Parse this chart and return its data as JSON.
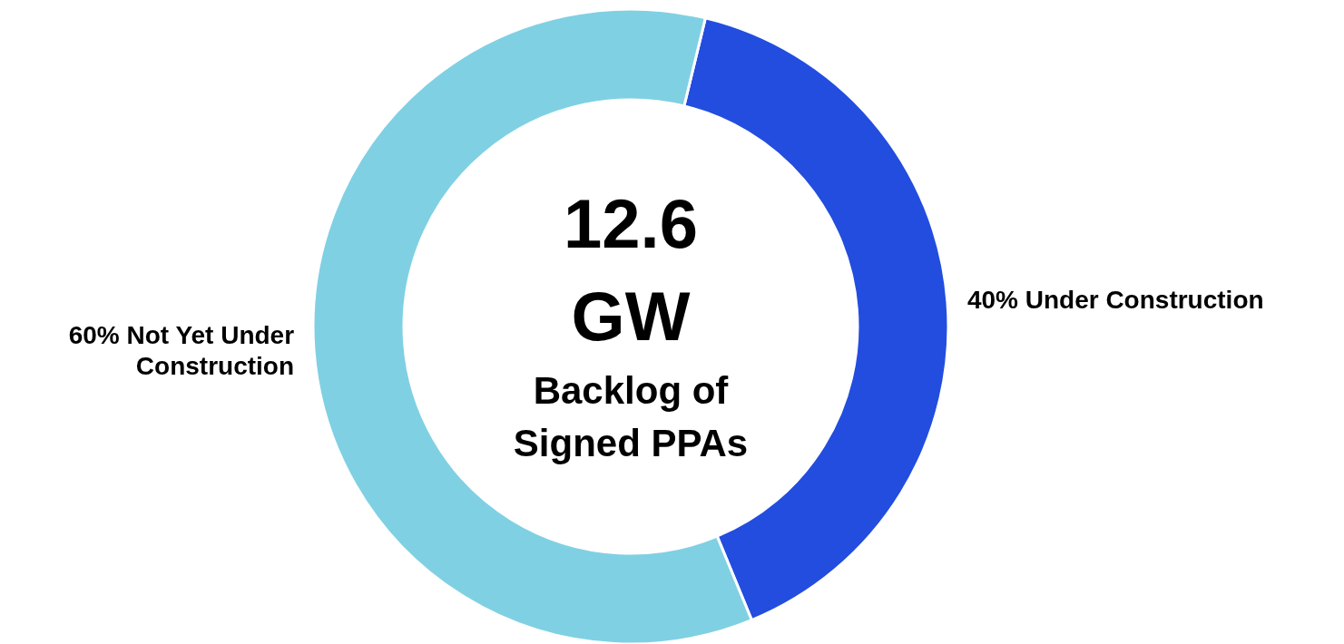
{
  "chart_data": {
    "type": "donut",
    "title": "12.6 GW",
    "subtitle": "Backlog of Signed PPAs",
    "categories": [
      "Under Construction",
      "Not Yet Under Construction"
    ],
    "values": [
      40,
      60
    ],
    "value_labels": [
      "40%",
      "60%"
    ],
    "colors": [
      "#224ddf",
      "#80d0e3"
    ]
  }
}
